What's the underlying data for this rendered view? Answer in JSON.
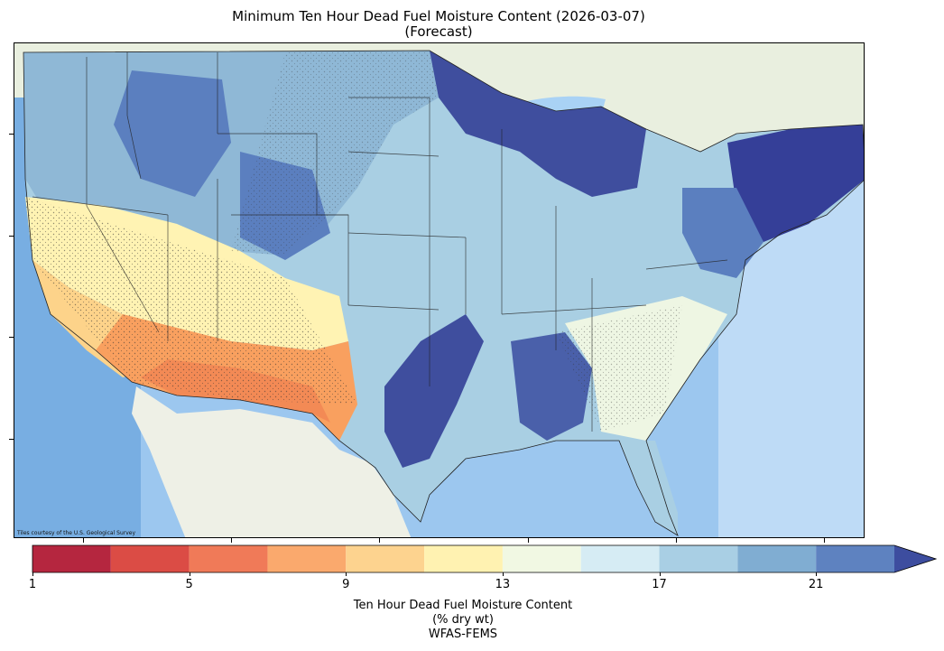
{
  "title": {
    "line1": "Minimum Ten Hour Dead Fuel Moisture Content (2026-03-07)",
    "line2": "(Forecast)"
  },
  "map": {
    "attribution": "Tiles courtesy of the U.S. Geological Survey",
    "basemap_colors": {
      "ocean": "#7fb4e6",
      "ocean_light": "#cfe6fb",
      "land": "#e9efdf",
      "lake": "#a9d2f5"
    },
    "region_colors": {
      "southwest_dry": "#f9a05f",
      "southwest_core": "#f38a55",
      "california_mid": "#fdd38a",
      "great_basin": "#fff3b3",
      "plains": "#a9cfe3",
      "midwest": "#8fb8d6",
      "northern_rockies": "#5b7fbf",
      "great_lakes": "#3f4e9e",
      "northeast": "#353f98",
      "southeast_light": "#eef6e3",
      "gulf_band": "#4a60aa"
    }
  },
  "colorbar": {
    "label_line1": "Ten Hour Dead Fuel Moisture Content",
    "label_line2": "(% dry wt)",
    "label_line3": "WFAS-FEMS",
    "ticks": [
      "1",
      "5",
      "9",
      "13",
      "17",
      "21"
    ],
    "tick_values": [
      1,
      5,
      9,
      13,
      17,
      21
    ],
    "range": [
      1,
      23
    ],
    "extend": "max",
    "bins": [
      {
        "from": 1,
        "to": 3,
        "color": "#b5263f"
      },
      {
        "from": 3,
        "to": 5,
        "color": "#db4c45"
      },
      {
        "from": 5,
        "to": 7,
        "color": "#f07a58"
      },
      {
        "from": 7,
        "to": 9,
        "color": "#faa96d"
      },
      {
        "from": 9,
        "to": 11,
        "color": "#fdd38f"
      },
      {
        "from": 11,
        "to": 13,
        "color": "#fff2b1"
      },
      {
        "from": 13,
        "to": 15,
        "color": "#f1f8e3"
      },
      {
        "from": 15,
        "to": 17,
        "color": "#d6ecf4"
      },
      {
        "from": 17,
        "to": 19,
        "color": "#a9cfe4"
      },
      {
        "from": 19,
        "to": 21,
        "color": "#80add2"
      },
      {
        "from": 21,
        "to": 23,
        "color": "#5e82c0"
      }
    ],
    "extend_color": "#3d4d9f"
  }
}
